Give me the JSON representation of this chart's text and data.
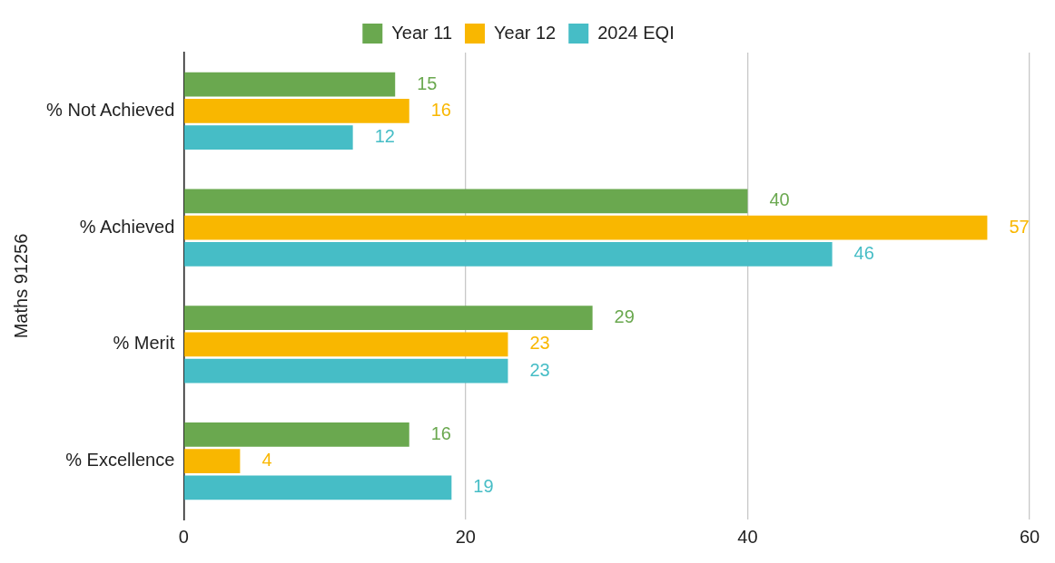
{
  "chart_data": {
    "type": "bar",
    "orientation": "horizontal",
    "ylabel": "Maths 91256",
    "categories": [
      "% Not Achieved",
      "% Achieved",
      "% Merit",
      "% Excellence"
    ],
    "series": [
      {
        "name": "Year 11",
        "color": "#6aa84f",
        "values": [
          15,
          40,
          29,
          16
        ]
      },
      {
        "name": "Year 12",
        "color": "#f9b700",
        "values": [
          16,
          57,
          23,
          4
        ]
      },
      {
        "name": "2024 EQI",
        "color": "#46bdc6",
        "values": [
          12,
          46,
          23,
          19
        ]
      }
    ],
    "xlim": [
      0,
      60
    ],
    "xticks": [
      0,
      20,
      40,
      60
    ],
    "grid": "x",
    "legend": "top",
    "data_labels": true
  }
}
